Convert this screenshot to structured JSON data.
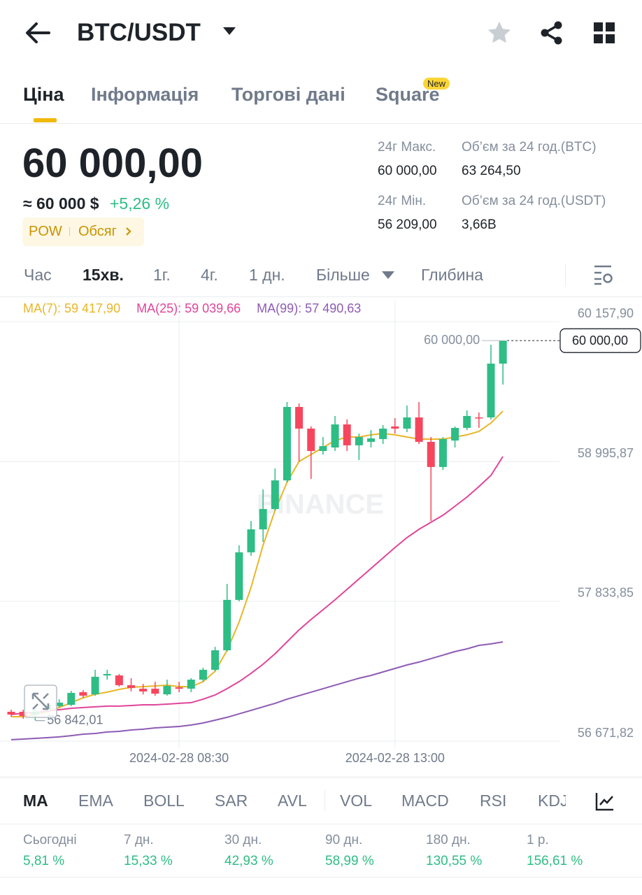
{
  "header": {
    "pair": "BTC/USDT"
  },
  "tabs": [
    "Ціна",
    "Інформація",
    "Торгові дані",
    "Square"
  ],
  "new_badge": "New",
  "price": {
    "last": "60 000,00",
    "approx": "≈ 60 000 $",
    "change": "+5,26 %",
    "tags": [
      "POW",
      "Обсяг"
    ]
  },
  "stats": [
    {
      "label": "24г Макс.",
      "value": "60 000,00"
    },
    {
      "label": "Об’єм за 24 год.(BTC)",
      "value": "63 264,50"
    },
    {
      "label": "24г Мін.",
      "value": "56 209,00"
    },
    {
      "label": "Об’єм за 24 год.(USDT)",
      "value": "3,66B"
    }
  ],
  "intervals": [
    "Час",
    "15хв.",
    "1г.",
    "4г.",
    "1 дн.",
    "Більше",
    "Глибина"
  ],
  "chart_data": {
    "type": "candlestick",
    "watermark": "BINANCE",
    "up_color": "#2ebd85",
    "down_color": "#f6465d",
    "categories": [
      null,
      null,
      null,
      null,
      null,
      null,
      null,
      null,
      null,
      null,
      null,
      null,
      null,
      null,
      "2024-02-28 08:30",
      null,
      null,
      null,
      null,
      null,
      null,
      null,
      null,
      null,
      null,
      null,
      null,
      null,
      null,
      null,
      null,
      null,
      "2024-02-28 13:00",
      null,
      null,
      null,
      null,
      null,
      null,
      null,
      null,
      null
    ],
    "open": [
      56916,
      56916,
      56893,
      56933,
      56963,
      56974,
      57079,
      57061,
      57218,
      57218,
      57137,
      57108,
      57108,
      57061,
      57119,
      57108,
      57183,
      57265,
      57427,
      57846,
      58241,
      58432,
      58601,
      58839,
      59449,
      59269,
      59083,
      59112,
      59304,
      59130,
      59159,
      59182,
      59287,
      59269,
      59362,
      59159,
      58950,
      59170,
      59275,
      59362,
      59362,
      59809
    ],
    "high": [
      56933,
      56933,
      56951,
      56992,
      57021,
      57090,
      57096,
      57265,
      57265,
      57230,
      57195,
      57148,
      57166,
      57183,
      57166,
      57195,
      57282,
      57456,
      57979,
      58299,
      58502,
      58764,
      58938,
      59490,
      59478,
      59287,
      59199,
      59374,
      59345,
      59228,
      59257,
      59298,
      59356,
      59461,
      59490,
      59199,
      59199,
      59287,
      59420,
      59403,
      59966,
      60000
    ],
    "low": [
      56875,
      56858,
      56846,
      56916,
      56951,
      56963,
      57032,
      57050,
      57183,
      57125,
      57085,
      57061,
      57050,
      57050,
      57079,
      57079,
      57166,
      57253,
      57416,
      57834,
      58212,
      58328,
      58589,
      58822,
      58996,
      58851,
      59054,
      59083,
      59083,
      59008,
      59112,
      59141,
      59228,
      59240,
      59141,
      58502,
      58926,
      59112,
      59257,
      59275,
      59345,
      59635
    ],
    "close": [
      56893,
      56881,
      56916,
      56974,
      56992,
      57073,
      57050,
      57207,
      57230,
      57137,
      57114,
      57085,
      57067,
      57131,
      57108,
      57183,
      57265,
      57427,
      57846,
      58241,
      58432,
      58601,
      58839,
      59449,
      59269,
      59083,
      59124,
      59304,
      59130,
      59199,
      59188,
      59269,
      59269,
      59362,
      59159,
      58950,
      59182,
      59275,
      59374,
      59362,
      59809,
      60000
    ],
    "series": [
      {
        "name": "MA(7): 59 417,90",
        "color": "#e8b628",
        "values": [
          56875,
          56875,
          56893,
          56916,
          56951,
          56992,
          57032,
          57061,
          57079,
          57102,
          57119,
          57125,
          57131,
          57137,
          57125,
          57125,
          57166,
          57253,
          57427,
          57660,
          57950,
          58299,
          58589,
          58822,
          58996,
          59054,
          59112,
          59170,
          59199,
          59199,
          59217,
          59228,
          59217,
          59199,
          59182,
          59182,
          59182,
          59199,
          59217,
          59246,
          59316,
          59414
        ]
      },
      {
        "name": "MA(25): 59 039,66",
        "color": "#e0459a",
        "values": [
          56893,
          56904,
          56910,
          56922,
          56933,
          56945,
          56951,
          56957,
          56963,
          56963,
          56968,
          56974,
          56974,
          56980,
          56986,
          56992,
          57021,
          57055,
          57108,
          57166,
          57236,
          57311,
          57398,
          57497,
          57596,
          57683,
          57764,
          57846,
          57933,
          58020,
          58107,
          58194,
          58281,
          58363,
          58432,
          58491,
          58549,
          58624,
          58700,
          58787,
          58880,
          59037
        ]
      },
      {
        "name": "MA(99): 57 490,63",
        "color": "#8e5bb5",
        "values": [
          56684,
          56689,
          56695,
          56701,
          56707,
          56718,
          56730,
          56736,
          56748,
          56753,
          56765,
          56771,
          56782,
          56788,
          56794,
          56806,
          56823,
          56846,
          56870,
          56899,
          56928,
          56957,
          56986,
          57021,
          57050,
          57079,
          57108,
          57137,
          57166,
          57195,
          57218,
          57247,
          57276,
          57305,
          57329,
          57358,
          57387,
          57416,
          57439,
          57468,
          57480,
          57497
        ]
      }
    ],
    "ylim": [
      56671.82,
      60157.9
    ],
    "yticks": [
      {
        "value": 60157.9,
        "label": "60 157,90"
      },
      {
        "value": 58995.87,
        "label": "58 995,87"
      },
      {
        "value": 57833.85,
        "label": "57 833,85"
      },
      {
        "value": 56671.82,
        "label": "56 671,82"
      }
    ],
    "last_price": {
      "value": 60000,
      "label": "60 000,00"
    },
    "low_marker": {
      "value": 56842.01,
      "label": "56 842,01"
    },
    "grid": true
  },
  "indicators": [
    "MA",
    "EMA",
    "BOLL",
    "SAR",
    "AVL",
    "VOL",
    "MACD",
    "RSI",
    "KDJ"
  ],
  "performance": [
    {
      "period": "Сьогодні",
      "change": "5,81 %"
    },
    {
      "period": "7 дн.",
      "change": "15,33 %"
    },
    {
      "period": "30 дн.",
      "change": "42,93 %"
    },
    {
      "period": "90 дн.",
      "change": "58,99 %"
    },
    {
      "period": "180 дн.",
      "change": "130,55 %"
    },
    {
      "period": "1 р.",
      "change": "156,61 %"
    }
  ]
}
